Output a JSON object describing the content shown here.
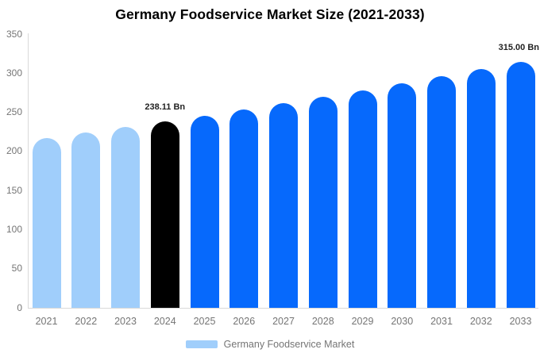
{
  "title": "Germany Foodservice Market Size (2021-2033)",
  "chart_data": {
    "type": "bar",
    "title": "Germany Foodservice Market Size (2021-2033)",
    "categories": [
      "2021",
      "2022",
      "2023",
      "2024",
      "2025",
      "2026",
      "2027",
      "2028",
      "2029",
      "2030",
      "2031",
      "2032",
      "2033"
    ],
    "values": [
      216.9,
      223.7,
      230.8,
      238.11,
      245.6,
      253.4,
      261.4,
      269.7,
      278.2,
      287.0,
      296.1,
      305.5,
      315.0
    ],
    "bar_colors": [
      "#A0CEFB",
      "#A0CEFB",
      "#A0CEFB",
      "#000000",
      "#0669FC",
      "#0669FC",
      "#0669FC",
      "#0669FC",
      "#0669FC",
      "#0669FC",
      "#0669FC",
      "#0669FC",
      "#0669FC"
    ],
    "data_labels": [
      {
        "category": "2024",
        "text": "238.11 Bn"
      },
      {
        "category": "2033",
        "text": "315.00 Bn"
      }
    ],
    "xlabel": "",
    "ylabel": "",
    "ylim": [
      0,
      350
    ],
    "yticks": [
      0,
      50,
      100,
      150,
      200,
      250,
      300,
      350
    ],
    "grid": false,
    "legend_position": "bottom",
    "legend": [
      {
        "label": "Germany Foodservice Market",
        "color": "#A0CEFB"
      }
    ],
    "colors": {
      "historical_bar": "#A0CEFB",
      "base_year_bar": "#000000",
      "forecast_bar": "#0669FC",
      "axis_line": "#d9d9d9",
      "tick_text": "#757575",
      "value_label_text": "#222222",
      "title_text": "#000000"
    }
  }
}
